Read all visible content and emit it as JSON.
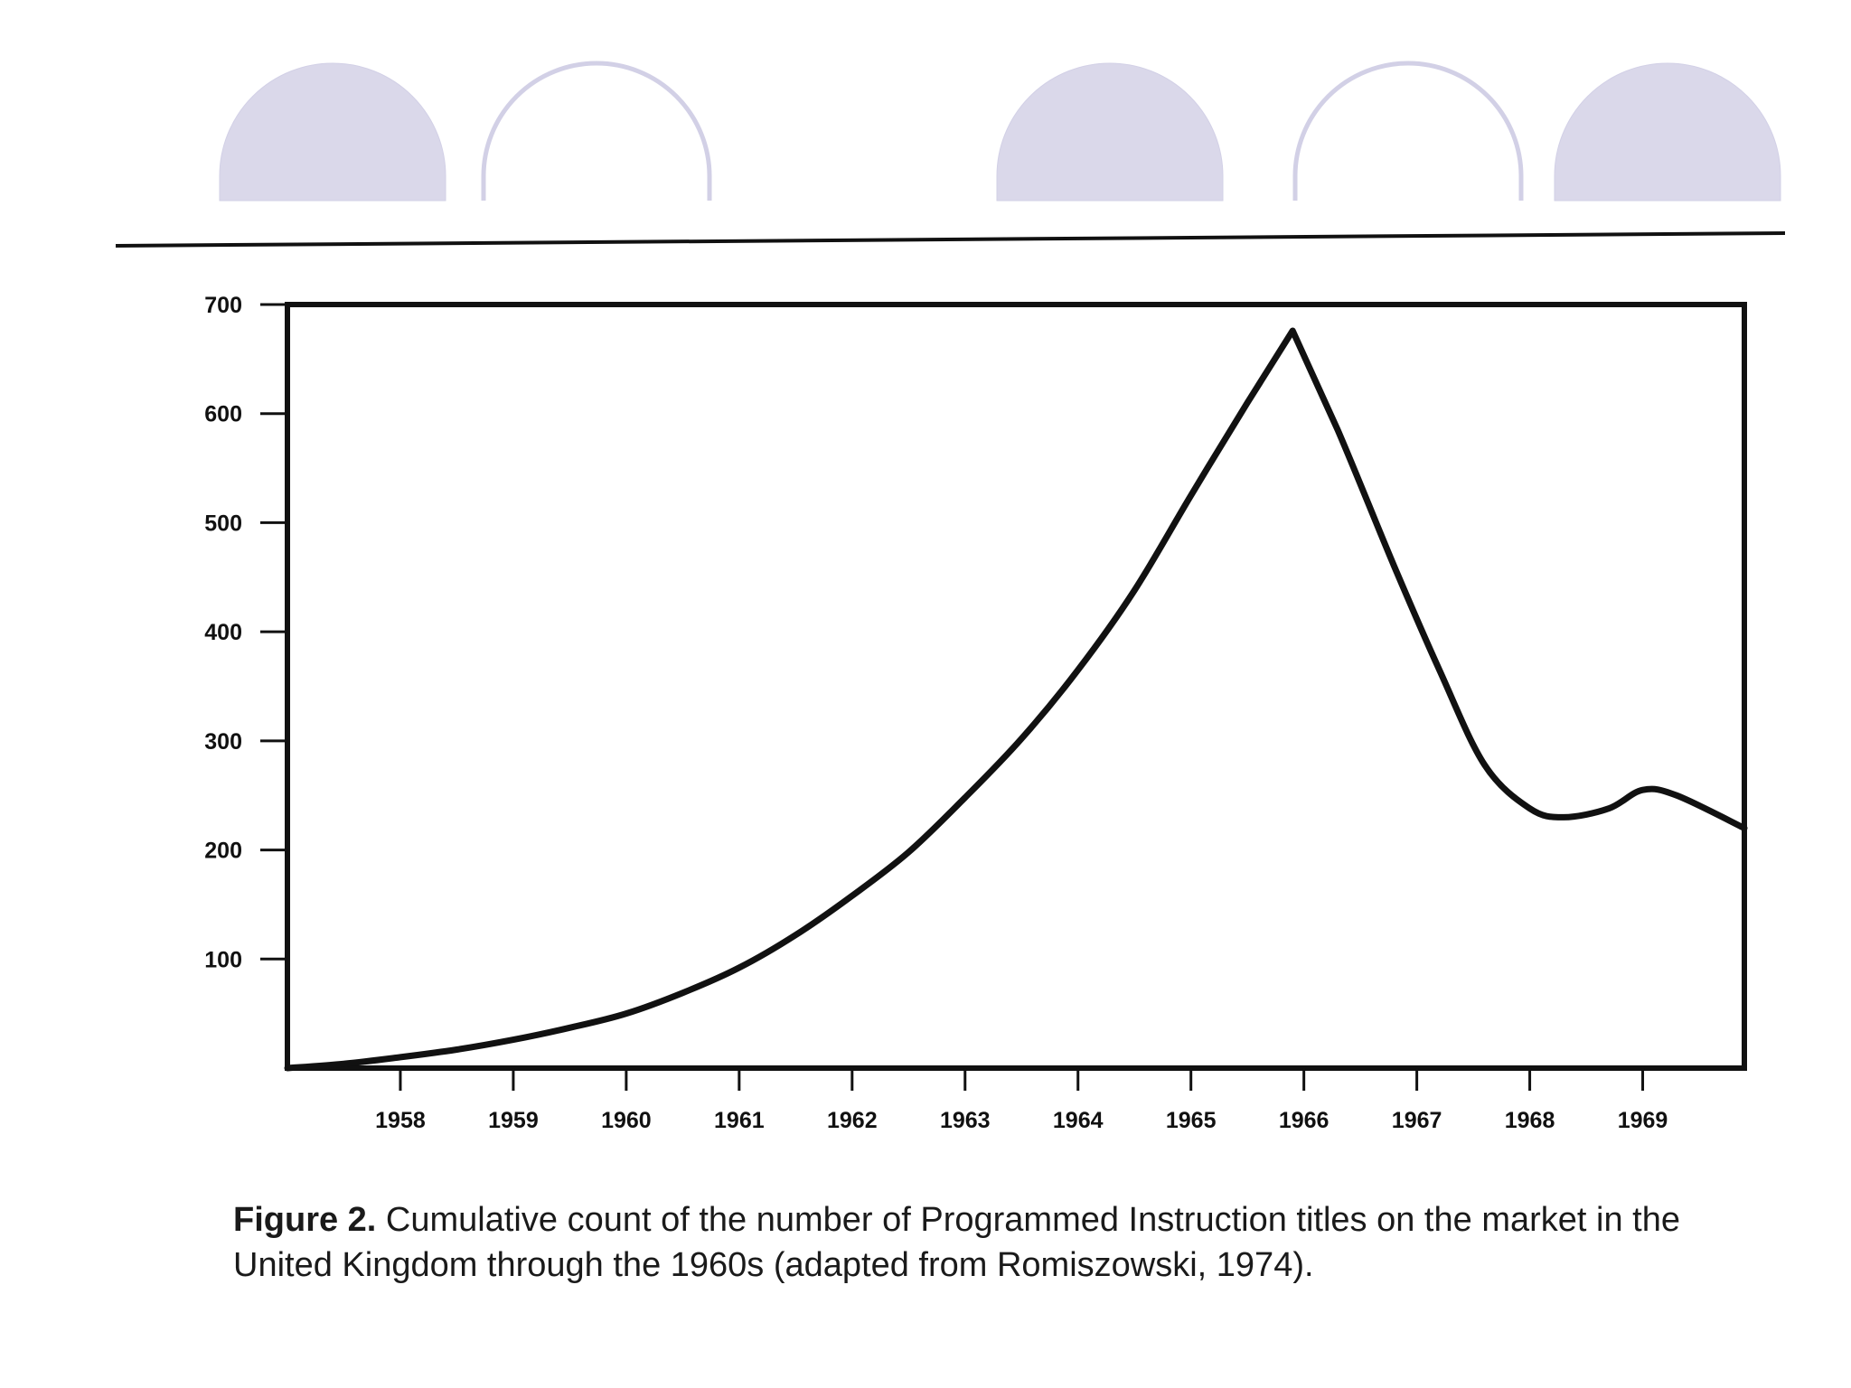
{
  "theme": {
    "deco_fill": "#dad8ea",
    "deco_stroke": "#d2d0e6",
    "ink": "#111111"
  },
  "decor": {
    "circles": [
      {
        "style": "filled"
      },
      {
        "style": "outline"
      },
      {
        "style": "filled"
      },
      {
        "style": "outline"
      },
      {
        "style": "filled"
      }
    ]
  },
  "chart_data": {
    "type": "line",
    "title": "",
    "xlabel": "",
    "ylabel": "",
    "x_tick_labels": [
      "1958",
      "1959",
      "1960",
      "1961",
      "1962",
      "1963",
      "1964",
      "1965",
      "1966",
      "1967",
      "1968",
      "1969"
    ],
    "y_tick_labels": [
      "100",
      "200",
      "300",
      "400",
      "500",
      "600",
      "700"
    ],
    "xlim": [
      1957.0,
      1969.9
    ],
    "ylim": [
      0,
      700
    ],
    "grid": false,
    "series": [
      {
        "name": "Programmed Instruction titles",
        "x": [
          1957.0,
          1957.5,
          1958.0,
          1958.5,
          1959.0,
          1959.5,
          1960.0,
          1960.5,
          1961.0,
          1961.5,
          1962.0,
          1962.5,
          1963.0,
          1963.5,
          1964.0,
          1964.5,
          1965.0,
          1965.5,
          1965.9,
          1966.3,
          1966.8,
          1967.2,
          1967.6,
          1968.0,
          1968.3,
          1968.7,
          1969.0,
          1969.3,
          1969.9
        ],
        "values": [
          0,
          4,
          10,
          17,
          26,
          37,
          50,
          69,
          92,
          122,
          158,
          198,
          248,
          302,
          365,
          438,
          525,
          610,
          676,
          585,
          460,
          365,
          278,
          238,
          230,
          238,
          255,
          250,
          220
        ]
      }
    ]
  },
  "caption": {
    "label": "Figure 2.",
    "text": " Cumulative count of the number of Programmed Instruction titles on the market in the United Kingdom through the 1960s (adapted from Romiszowski, 1974)."
  }
}
